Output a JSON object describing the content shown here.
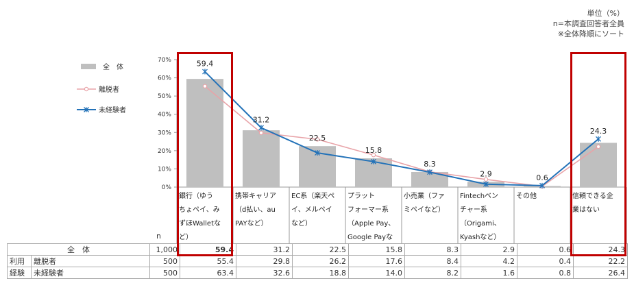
{
  "notes": {
    "unit": "単位（%）",
    "base": "n=本調査回答者全員",
    "sort": "※全体降順にソート"
  },
  "chart_data": {
    "type": "bar",
    "categories": [
      "銀行（ゆうちょペイ、みずほWalletなど）",
      "携帯キャリア（d払い、au PAYなど）",
      "EC系（楽天ペイ、メルペイなど）",
      "プラットフォーマー系（Apple Pay、Google Payなど）",
      "小売業（ファミペイなど）",
      "Fintechベンチャー系（Origami、Kyashなど）",
      "その他",
      "信頼できる企業はない"
    ],
    "category_lines": [
      [
        "銀行（ゆう",
        "ちょペイ、み",
        "ずほWalletな",
        "ど）"
      ],
      [
        "携帯キャリア",
        "（d払い、au",
        "PAYなど）"
      ],
      [
        "EC系（楽天ペ",
        "イ、メルペイ",
        "など）"
      ],
      [
        "プラット",
        "フォーマー系",
        "（Apple Pay、",
        "Google Payな"
      ],
      [
        "小売業（ファ",
        "ミペイなど）"
      ],
      [
        "Fintechベン",
        "チャー系",
        "（Origami、",
        "Kyashなど）"
      ],
      [
        "その他"
      ],
      [
        "信頼できる企",
        "業はない"
      ]
    ],
    "series": [
      {
        "name": "全　体",
        "type": "bar",
        "values": [
          59.4,
          31.2,
          22.5,
          15.8,
          8.3,
          2.9,
          0.6,
          24.3
        ],
        "color": "#bfbfbf"
      },
      {
        "name": "離脱者",
        "type": "line",
        "values": [
          55.4,
          29.8,
          26.2,
          17.6,
          8.4,
          4.2,
          0.4,
          22.2
        ],
        "color": "#e8a3a8"
      },
      {
        "name": "未経験者",
        "type": "line",
        "values": [
          63.4,
          32.6,
          18.8,
          14.0,
          8.2,
          1.6,
          0.8,
          26.4
        ],
        "color": "#2372b8"
      }
    ],
    "data_labels": [
      "59.4",
      "31.2",
      "22.5",
      "15.8",
      "8.3",
      "2.9",
      "0.6",
      "24.3"
    ],
    "yticks": [
      "0%",
      "10%",
      "20%",
      "30%",
      "40%",
      "50%",
      "60%",
      "70%"
    ],
    "ylim": [
      0,
      70
    ],
    "legend_position": "left",
    "highlight_color": "#c00000",
    "highlighted_categories": [
      0,
      7
    ]
  },
  "table": {
    "n_header": "n",
    "rows": [
      {
        "group": "",
        "label": "全　体",
        "n": "1,000",
        "values": [
          "59.4",
          "31.2",
          "22.5",
          "15.8",
          "8.3",
          "2.9",
          "0.6",
          "24.3"
        ]
      },
      {
        "group": "利用",
        "label": "離脱者",
        "n": "500",
        "values": [
          "55.4",
          "29.8",
          "26.2",
          "17.6",
          "8.4",
          "4.2",
          "0.4",
          "22.2"
        ]
      },
      {
        "group": "経験",
        "label": "未経験者",
        "n": "500",
        "values": [
          "63.4",
          "32.6",
          "18.8",
          "14.0",
          "8.2",
          "1.6",
          "0.8",
          "26.4"
        ]
      }
    ]
  }
}
